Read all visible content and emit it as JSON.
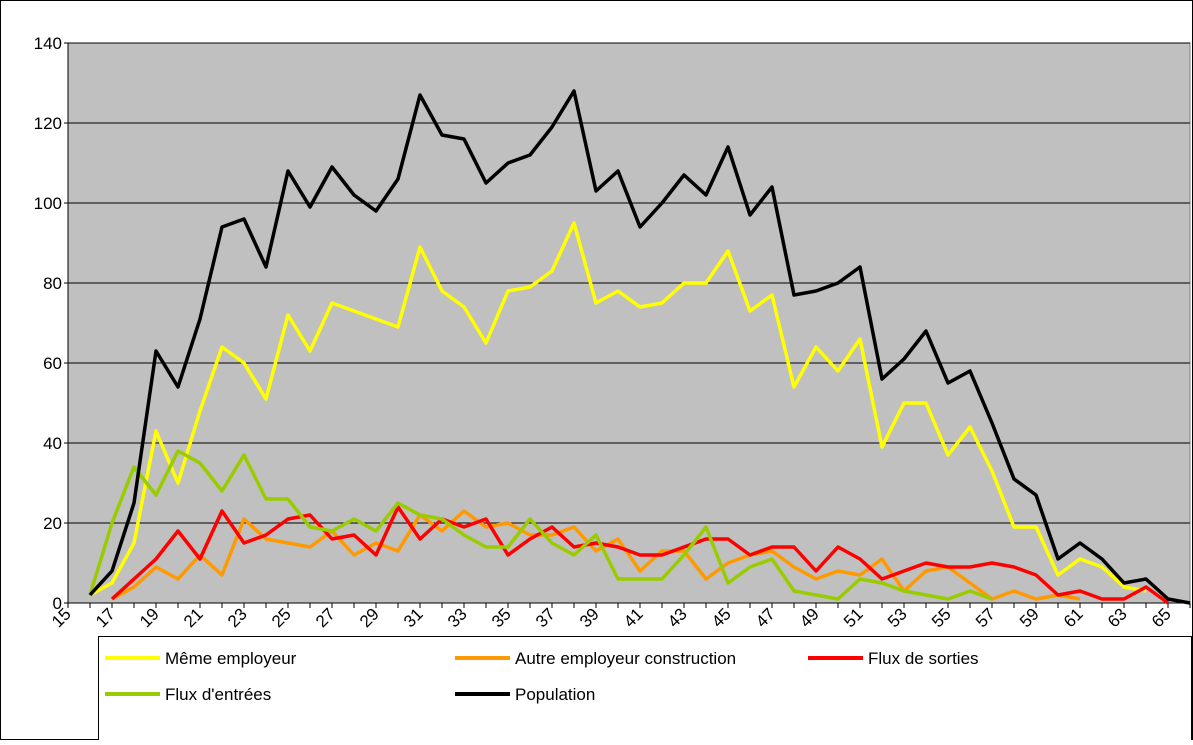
{
  "chart_data": {
    "type": "line",
    "categories": [
      "15",
      null,
      "17",
      null,
      "19",
      null,
      "21",
      null,
      "23",
      null,
      "25",
      null,
      "27",
      null,
      "29",
      null,
      "31",
      null,
      "33",
      null,
      "35",
      null,
      "37",
      null,
      "39",
      null,
      "41",
      null,
      "43",
      null,
      "45",
      null,
      "47",
      null,
      "49",
      null,
      "51",
      null,
      "53",
      null,
      "55",
      null,
      "57",
      null,
      "59",
      null,
      "61",
      null,
      "63",
      null,
      "65",
      null
    ],
    "series": [
      {
        "name": "Même employeur",
        "color": "#ffff00",
        "values": [
          null,
          2,
          5,
          15,
          43,
          30,
          48,
          64,
          60,
          51,
          72,
          63,
          75,
          73,
          71,
          69,
          89,
          78,
          74,
          65,
          78,
          79,
          83,
          95,
          75,
          78,
          74,
          75,
          80,
          80,
          88,
          73,
          77,
          54,
          64,
          58,
          66,
          39,
          50,
          50,
          37,
          44,
          33,
          19,
          19,
          7,
          11,
          9,
          4,
          3,
          null,
          null
        ]
      },
      {
        "name": "Autre employeur construction",
        "color": "#ff9900",
        "values": [
          null,
          null,
          1,
          4,
          9,
          6,
          12,
          7,
          21,
          16,
          15,
          14,
          18,
          12,
          15,
          13,
          22,
          18,
          23,
          19,
          20,
          17,
          17,
          19,
          13,
          16,
          8,
          13,
          13,
          6,
          10,
          12,
          13,
          9,
          6,
          8,
          7,
          11,
          3,
          8,
          9,
          5,
          1,
          3,
          1,
          2,
          1,
          null,
          null,
          null,
          null,
          null
        ]
      },
      {
        "name": "Flux de sorties",
        "color": "#ff0000",
        "values": [
          null,
          null,
          1,
          6,
          11,
          18,
          11,
          23,
          15,
          17,
          21,
          22,
          16,
          17,
          12,
          24,
          16,
          21,
          19,
          21,
          12,
          16,
          19,
          14,
          15,
          14,
          12,
          12,
          14,
          16,
          16,
          12,
          14,
          14,
          8,
          14,
          11,
          6,
          8,
          10,
          9,
          9,
          10,
          9,
          7,
          2,
          3,
          1,
          1,
          4,
          0,
          null
        ]
      },
      {
        "name": "Flux d'entrées",
        "color": "#99cc00",
        "values": [
          null,
          2,
          20,
          34,
          27,
          38,
          35,
          28,
          37,
          26,
          26,
          19,
          18,
          21,
          18,
          25,
          22,
          21,
          17,
          14,
          14,
          21,
          15,
          12,
          17,
          6,
          6,
          6,
          12,
          19,
          5,
          9,
          11,
          3,
          2,
          1,
          6,
          5,
          3,
          2,
          1,
          3,
          1,
          null,
          null,
          null,
          null,
          null,
          null,
          null,
          null,
          null
        ]
      },
      {
        "name": "Population",
        "color": "#000000",
        "values": [
          null,
          2,
          8,
          25,
          63,
          54,
          71,
          94,
          96,
          84,
          108,
          99,
          109,
          102,
          98,
          106,
          127,
          117,
          116,
          105,
          110,
          112,
          119,
          128,
          103,
          108,
          94,
          100,
          107,
          102,
          114,
          97,
          104,
          77,
          78,
          80,
          84,
          56,
          61,
          68,
          55,
          58,
          45,
          31,
          27,
          11,
          15,
          11,
          5,
          6,
          1,
          0
        ]
      }
    ],
    "ylim": [
      0,
      140
    ],
    "yticks": [
      0,
      20,
      40,
      60,
      80,
      100,
      120,
      140
    ],
    "grid": true,
    "plot_background": "#c0c0c0"
  }
}
